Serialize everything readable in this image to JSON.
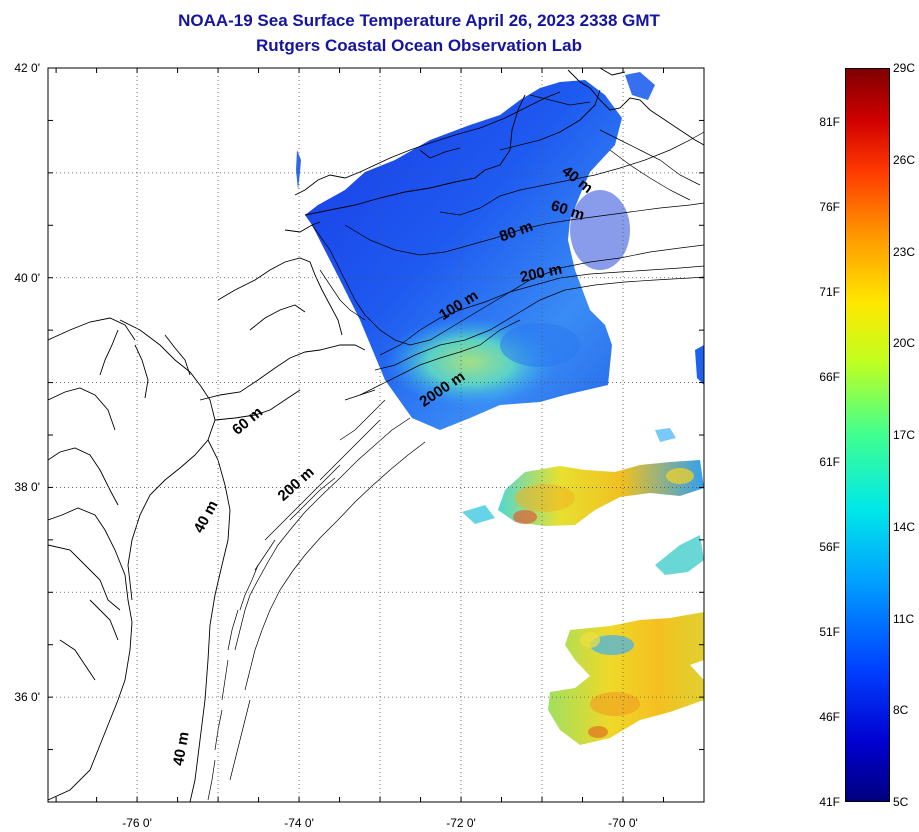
{
  "title": {
    "line1": "NOAA-19 Sea Surface Temperature April 26, 2023 2338 GMT",
    "line2": "Rutgers Coastal Ocean Observation Lab"
  },
  "map": {
    "lon_range": [
      -77.1,
      -69.0
    ],
    "lat_range": [
      35.0,
      42.0
    ],
    "lat_labels": [
      {
        "lat": 42,
        "label": "42 0'"
      },
      {
        "lat": 40,
        "label": "40 0'"
      },
      {
        "lat": 38,
        "label": "38 0'"
      },
      {
        "lat": 36,
        "label": "36 0'"
      }
    ],
    "lon_labels": [
      {
        "lon": -76,
        "label": "-76 0'"
      },
      {
        "lon": -74,
        "label": "-74 0'"
      },
      {
        "lon": -72,
        "label": "-72 0'"
      },
      {
        "lon": -70,
        "label": "-70 0'"
      }
    ],
    "grid_lats": [
      41,
      40,
      39,
      38,
      37,
      36
    ],
    "grid_lons": [
      -76,
      -75,
      -74,
      -73,
      -72,
      -71,
      -70
    ],
    "grid": "dotted",
    "depth_labels": [
      {
        "text": "40 m",
        "lon": -70.6,
        "lat": 40.9,
        "angle": 38
      },
      {
        "text": "60 m",
        "lon": -70.7,
        "lat": 40.6,
        "angle": 18
      },
      {
        "text": "80 m",
        "lon": -71.3,
        "lat": 40.4,
        "angle": -20
      },
      {
        "text": "200 m",
        "lon": -71.0,
        "lat": 40.0,
        "angle": -12
      },
      {
        "text": "100 m",
        "lon": -72.0,
        "lat": 39.7,
        "angle": -32
      },
      {
        "text": "2000 m",
        "lon": -72.2,
        "lat": 38.9,
        "angle": -34
      },
      {
        "text": "60 m",
        "lon": -74.6,
        "lat": 38.6,
        "angle": -40
      },
      {
        "text": "200 m",
        "lon": -74.0,
        "lat": 38.0,
        "angle": -42
      },
      {
        "text": "40 m",
        "lon": -75.1,
        "lat": 37.7,
        "angle": -62
      },
      {
        "text": "40 m",
        "lon": -75.4,
        "lat": 35.5,
        "angle": -80
      }
    ]
  },
  "colorbar": {
    "fahrenheit": [
      "81F",
      "76F",
      "71F",
      "66F",
      "61F",
      "56F",
      "51F",
      "46F",
      "41F"
    ],
    "celsius": [
      "29C",
      "26C",
      "23C",
      "20C",
      "17C",
      "14C",
      "11C",
      "8C",
      "5C"
    ],
    "min_c": 5,
    "max_c": 29,
    "colors": [
      "#00007f",
      "#0000d0",
      "#0040ff",
      "#00a0ff",
      "#00e8e8",
      "#40ff90",
      "#c0ff20",
      "#ffe800",
      "#ff9a00",
      "#ff3a00",
      "#d00000",
      "#800000"
    ]
  }
}
